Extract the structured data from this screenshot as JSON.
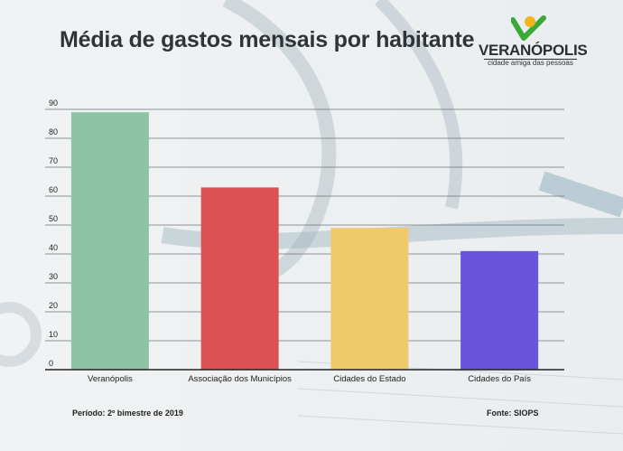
{
  "title": "Média de gastos mensais por habitante",
  "logo": {
    "name": "VERANÓPOLIS",
    "tagline": "cidade amiga das pessoas",
    "colors": {
      "check": "#3aa935",
      "sun": "#f2b51c"
    }
  },
  "footer": {
    "periodo": "Período: 2º bimestre de 2019",
    "fonte": "Fonte: SIOPS"
  },
  "chart_data": {
    "type": "bar",
    "title": "Média de gastos mensais por habitante",
    "categories": [
      "Veranópolis",
      "Associação dos Municípios",
      "Cidades do Estado",
      "Cidades do País"
    ],
    "values": [
      89,
      63,
      49,
      41
    ],
    "colors": [
      "#8cc4a5",
      "#dc5253",
      "#f0c96a",
      "#6b54dc"
    ],
    "ylim": [
      0,
      90
    ],
    "yticks": [
      0,
      10,
      20,
      30,
      40,
      50,
      60,
      70,
      80,
      90
    ],
    "grid": true,
    "xlabel": "",
    "ylabel": ""
  }
}
